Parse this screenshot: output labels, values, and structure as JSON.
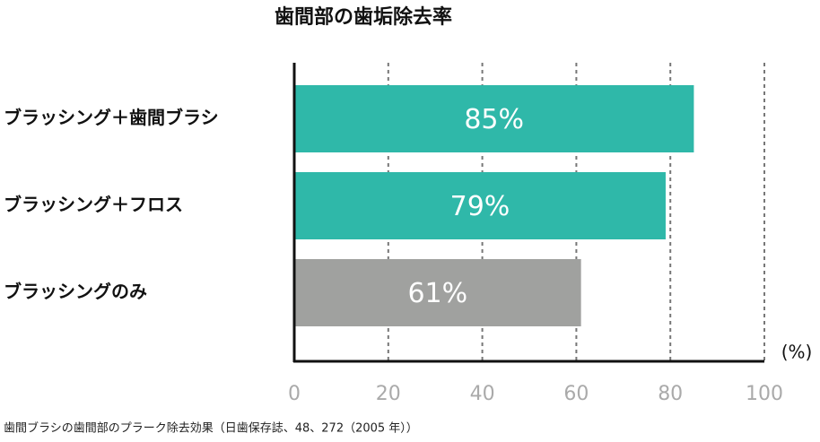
{
  "chart_data": {
    "type": "barh",
    "title": "歯間部の歯垢除去率",
    "categories": [
      "ブラッシング＋歯間ブラシ",
      "ブラッシング＋フロス",
      "ブラッシングのみ"
    ],
    "values": [
      85,
      79,
      61
    ],
    "value_labels": [
      "85%",
      "79%",
      "61%"
    ],
    "colors": [
      "#2fb8a9",
      "#2fb8a9",
      "#a0a19f"
    ],
    "xlim": [
      0,
      100
    ],
    "xticks": [
      0,
      20,
      40,
      60,
      80,
      100
    ],
    "grid": true,
    "x_label": "(%)",
    "note": "歯間ブラシの歯間部のプラーク除去効果（日歯保存誌、48、272（2005 年））"
  }
}
